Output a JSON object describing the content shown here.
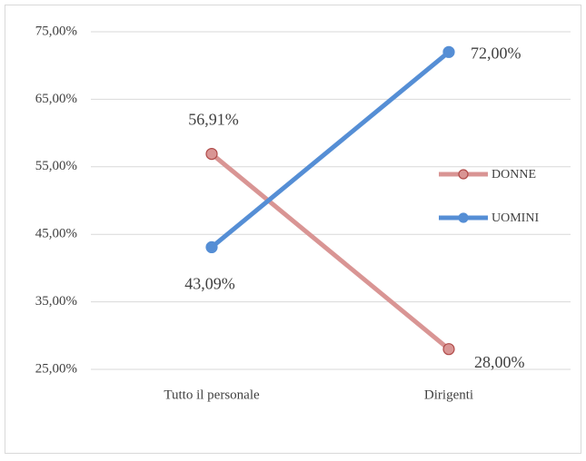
{
  "chart_data": {
    "type": "line",
    "categories": [
      "Tutto il personale",
      "Dirigenti"
    ],
    "series": [
      {
        "name": "DONNE",
        "color": "#d99594",
        "marker_stroke": "#b04a48",
        "values": [
          56.91,
          28.0
        ],
        "value_labels": [
          "56,91%",
          "28,00%"
        ]
      },
      {
        "name": "UOMINI",
        "color": "#558ed5",
        "marker_stroke": "#558ed5",
        "values": [
          43.09,
          72.0
        ],
        "value_labels": [
          "43,09%",
          "72,00%"
        ]
      }
    ],
    "ylim": [
      25,
      75
    ],
    "yticks": [
      {
        "value": 25,
        "label": "25,00%"
      },
      {
        "value": 35,
        "label": "35,00%"
      },
      {
        "value": 45,
        "label": "45,00%"
      },
      {
        "value": 55,
        "label": "55,00%"
      },
      {
        "value": 65,
        "label": "65,00%"
      },
      {
        "value": 75,
        "label": "75,00%"
      }
    ],
    "grid": true,
    "legend": "right"
  }
}
